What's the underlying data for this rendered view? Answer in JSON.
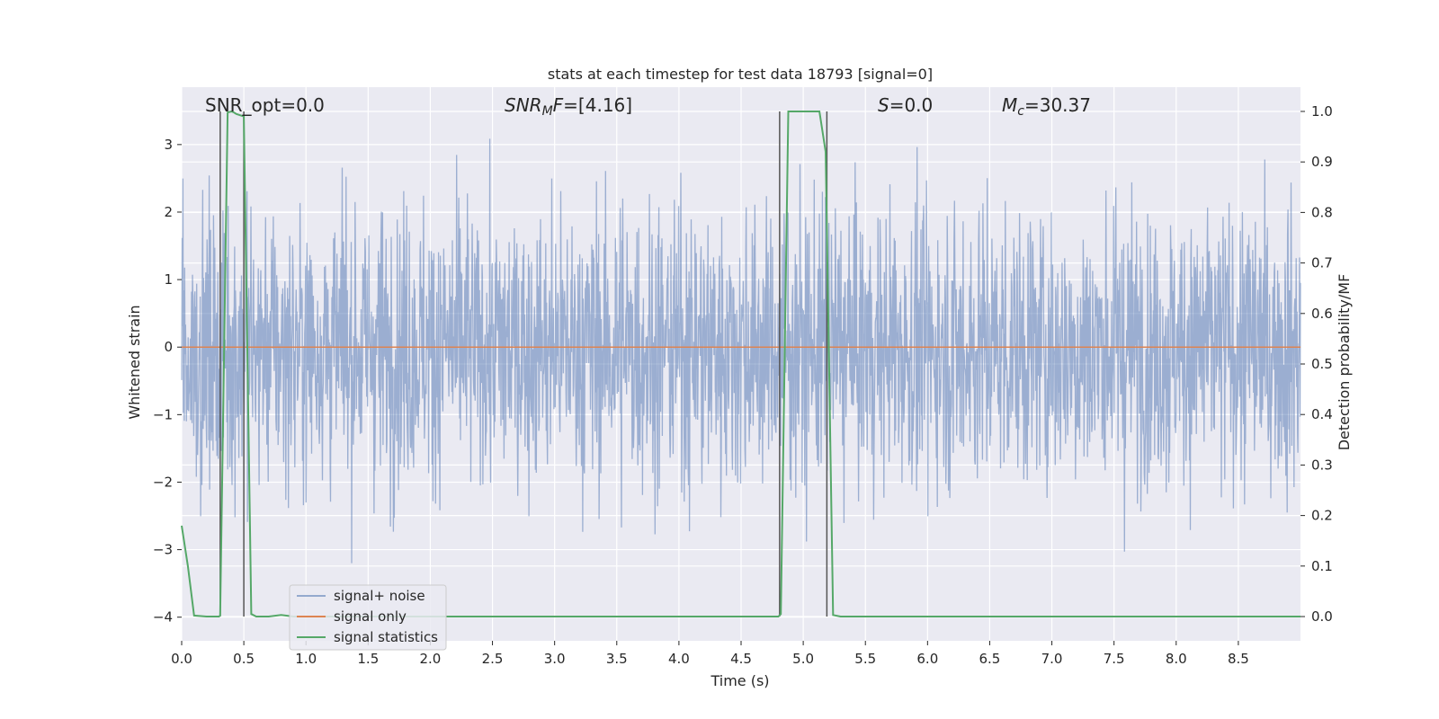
{
  "chart_data": {
    "type": "line",
    "title": "stats at each timestep for test data 18793 [signal=0]",
    "xlabel": "Time (s)",
    "ylabel": "Whitened strain",
    "y2label": "Detection probability/MF",
    "xlim": [
      0.0,
      9.0
    ],
    "ylim": [
      -4.35,
      3.85
    ],
    "y2lim": [
      -0.048,
      1.048
    ],
    "xticks": [
      "0.0",
      "0.5",
      "1.0",
      "1.5",
      "2.0",
      "2.5",
      "3.0",
      "3.5",
      "4.0",
      "4.5",
      "5.0",
      "5.5",
      "6.0",
      "6.5",
      "7.0",
      "7.5",
      "8.0",
      "8.5"
    ],
    "yticks": [
      "3",
      "2",
      "1",
      "0",
      "−1",
      "−2",
      "−3",
      "−4"
    ],
    "y2ticks": [
      "1.0",
      "0.9",
      "0.8",
      "0.7",
      "0.6",
      "0.5",
      "0.4",
      "0.3",
      "0.2",
      "0.1",
      "0.0"
    ],
    "grid": true,
    "legend_position": "lower-left",
    "annotations": {
      "snr_opt": "SNR_opt=0.0",
      "snr_mf": "=[4.16]",
      "snr_mf_math": "SNR",
      "snr_mf_sub": "M",
      "snr_mf_tail": "F",
      "s": "=0.0",
      "s_math": "S",
      "mc": "=30.37",
      "mc_math": "M",
      "mc_sub": "c"
    },
    "series": [
      {
        "name": "signal+ noise",
        "color": "#4c72b0",
        "description_values": "noise band, approx amplitude within [-3.6, 3.4]"
      },
      {
        "name": "signal only",
        "color": "#dd8452",
        "x": [
          0.0,
          9.0
        ],
        "y": [
          0.0,
          0.0
        ]
      },
      {
        "name": "signal statistics",
        "color": "#55a868",
        "axis": "right",
        "x": [
          0.0,
          0.05,
          0.1,
          0.2,
          0.3,
          0.31,
          0.37,
          0.4,
          0.42,
          0.44,
          0.5,
          0.56,
          0.6,
          0.7,
          0.8,
          0.9,
          1.0,
          2.0,
          3.0,
          4.0,
          4.8,
          4.82,
          4.88,
          5.0,
          5.13,
          5.18,
          5.24,
          5.3,
          6.0,
          7.0,
          8.0,
          9.0
        ],
        "y": [
          0.18,
          0.1,
          0.002,
          0.0,
          0.0,
          0.002,
          0.998,
          1.0,
          0.998,
          0.995,
          0.99,
          0.005,
          0.0,
          0.0,
          0.003,
          0.0,
          0.0,
          0.0,
          0.0,
          0.0,
          0.0,
          0.005,
          1.0,
          1.0,
          1.0,
          0.92,
          0.003,
          0.0,
          0.0,
          0.0,
          0.0,
          0.0
        ]
      }
    ],
    "vlines": [
      0.31,
      0.5,
      4.81,
      5.19
    ]
  }
}
